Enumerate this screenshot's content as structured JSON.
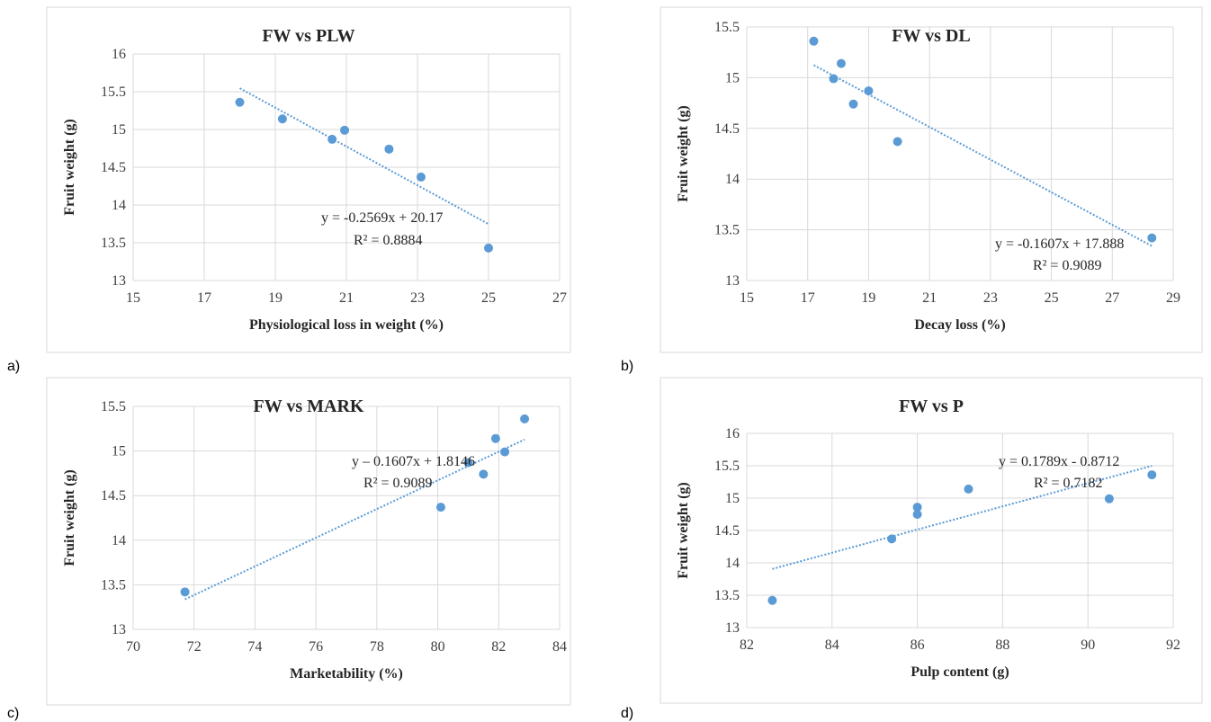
{
  "colors": {
    "marker": "#5b9bd5",
    "trend": "#5b9bd5",
    "grid": "#d9d9d9"
  },
  "panel_letters": [
    "a)",
    "b)",
    "c)",
    "d)"
  ],
  "chart_data": [
    {
      "type": "scatter",
      "title": "FW vs PLW",
      "xlabel": "Physiological loss in weight (%)",
      "ylabel": "Fruit weight (g)",
      "xlim": [
        15,
        27
      ],
      "ylim": [
        13,
        16
      ],
      "xticks": [
        15,
        17,
        19,
        21,
        23,
        25,
        27
      ],
      "yticks": [
        13,
        13.5,
        14,
        14.5,
        15,
        15.5,
        16
      ],
      "xticklabels": [
        "15",
        "17",
        "19",
        "21",
        "23",
        "25",
        "27"
      ],
      "yticklabels": [
        "13",
        "13.5",
        "14",
        "14.5",
        "15",
        "15.5",
        "16"
      ],
      "points": [
        {
          "x": 18.0,
          "y": 15.36
        },
        {
          "x": 19.2,
          "y": 15.14
        },
        {
          "x": 20.6,
          "y": 14.87
        },
        {
          "x": 20.95,
          "y": 14.99
        },
        {
          "x": 22.2,
          "y": 14.74
        },
        {
          "x": 23.1,
          "y": 14.37
        },
        {
          "x": 25.0,
          "y": 13.43
        }
      ],
      "trendline": {
        "slope": -0.2569,
        "intercept": 20.17,
        "x_range": [
          18.0,
          25.0
        ]
      },
      "equation": "y = -0.2569x + 20.17",
      "r2": "R² = 0.8884"
    },
    {
      "type": "scatter",
      "title": "FW vs DL",
      "xlabel": "Decay loss (%)",
      "ylabel": "Fruit weight (g)",
      "xlim": [
        15,
        29
      ],
      "ylim": [
        13,
        15.5
      ],
      "xticks": [
        15,
        17,
        19,
        21,
        23,
        25,
        27,
        29
      ],
      "yticks": [
        13,
        13.5,
        14,
        14.5,
        15,
        15.5
      ],
      "xticklabels": [
        "15",
        "17",
        "19",
        "21",
        "23",
        "25",
        "27",
        "29"
      ],
      "yticklabels": [
        "13",
        "13.5",
        "14",
        "14.5",
        "15",
        "15.5"
      ],
      "points": [
        {
          "x": 17.2,
          "y": 15.36
        },
        {
          "x": 17.85,
          "y": 14.99
        },
        {
          "x": 18.1,
          "y": 15.14
        },
        {
          "x": 18.5,
          "y": 14.74
        },
        {
          "x": 19.0,
          "y": 14.87
        },
        {
          "x": 19.95,
          "y": 14.37
        },
        {
          "x": 28.3,
          "y": 13.42
        }
      ],
      "trendline": {
        "slope": -0.1607,
        "intercept": 17.888,
        "x_range": [
          17.2,
          28.3
        ]
      },
      "equation": "y = -0.1607x + 17.888",
      "r2": "R² = 0.9089"
    },
    {
      "type": "scatter",
      "title": "FW vs MARK",
      "xlabel": "Marketability (%)",
      "ylabel": "Fruit weight (g)",
      "xlim": [
        70,
        84
      ],
      "ylim": [
        13,
        15.5
      ],
      "xticks": [
        70,
        72,
        74,
        76,
        78,
        80,
        82,
        84
      ],
      "yticks": [
        13,
        13.5,
        14,
        14.5,
        15,
        15.5
      ],
      "xticklabels": [
        "70",
        "72",
        "74",
        "76",
        "78",
        "80",
        "82",
        "84"
      ],
      "yticklabels": [
        "13",
        "13.5",
        "14",
        "14.5",
        "15",
        "15.5"
      ],
      "points": [
        {
          "x": 71.7,
          "y": 13.42
        },
        {
          "x": 80.1,
          "y": 14.37
        },
        {
          "x": 81.0,
          "y": 14.87
        },
        {
          "x": 81.5,
          "y": 14.74
        },
        {
          "x": 81.9,
          "y": 15.14
        },
        {
          "x": 82.2,
          "y": 14.99
        },
        {
          "x": 82.85,
          "y": 15.36
        }
      ],
      "trendline": {
        "slope": 0.1607,
        "intercept": 1.8146,
        "x_range": [
          71.7,
          82.85
        ]
      },
      "equation": "y – 0.1607x + 1.8146",
      "r2": "R² = 0.9089"
    },
    {
      "type": "scatter",
      "title": "FW vs P",
      "xlabel": "Pulp content (g)",
      "ylabel": "Fruit weight (g)",
      "xlim": [
        82,
        92
      ],
      "ylim": [
        13,
        16
      ],
      "xticks": [
        82,
        84,
        86,
        88,
        90,
        92
      ],
      "yticks": [
        13,
        13.5,
        14,
        14.5,
        15,
        15.5,
        16
      ],
      "xticklabels": [
        "82",
        "84",
        "86",
        "88",
        "90",
        "92"
      ],
      "yticklabels": [
        "13",
        "13.5",
        "14",
        "14.5",
        "15",
        "15.5",
        "16"
      ],
      "points": [
        {
          "x": 82.6,
          "y": 13.42
        },
        {
          "x": 85.4,
          "y": 14.37
        },
        {
          "x": 86.0,
          "y": 14.86
        },
        {
          "x": 86.0,
          "y": 14.75
        },
        {
          "x": 87.2,
          "y": 15.14
        },
        {
          "x": 90.5,
          "y": 14.99
        },
        {
          "x": 91.5,
          "y": 15.36
        }
      ],
      "trendline": {
        "slope": 0.1789,
        "intercept": -0.8712,
        "x_range": [
          82.6,
          91.5
        ]
      },
      "equation": "y = 0.1789x - 0.8712",
      "r2": "R² = 0.7182"
    }
  ]
}
